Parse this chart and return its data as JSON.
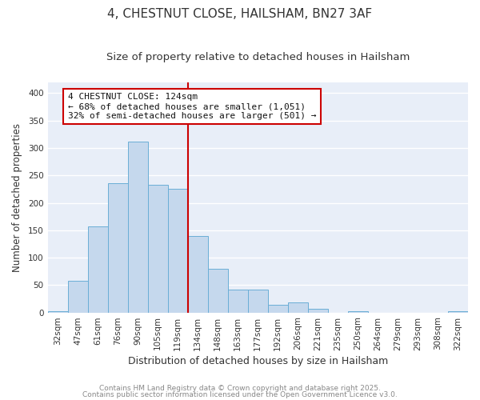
{
  "title": "4, CHESTNUT CLOSE, HAILSHAM, BN27 3AF",
  "subtitle": "Size of property relative to detached houses in Hailsham",
  "xlabel": "Distribution of detached houses by size in Hailsham",
  "ylabel": "Number of detached properties",
  "categories": [
    "32sqm",
    "47sqm",
    "61sqm",
    "76sqm",
    "90sqm",
    "105sqm",
    "119sqm",
    "134sqm",
    "148sqm",
    "163sqm",
    "177sqm",
    "192sqm",
    "206sqm",
    "221sqm",
    "235sqm",
    "250sqm",
    "264sqm",
    "279sqm",
    "293sqm",
    "308sqm",
    "322sqm"
  ],
  "values": [
    3,
    58,
    157,
    236,
    311,
    233,
    225,
    140,
    79,
    42,
    42,
    14,
    19,
    7,
    0,
    2,
    0,
    0,
    0,
    0,
    3
  ],
  "bar_color": "#c5d8ed",
  "bar_edge_color": "#6aaed6",
  "vline_x": 7,
  "vline_color": "#cc0000",
  "annotation_box_text": "4 CHESTNUT CLOSE: 124sqm\n← 68% of detached houses are smaller (1,051)\n32% of semi-detached houses are larger (501) →",
  "box_edge_color": "#cc0000",
  "ylim": [
    0,
    420
  ],
  "yticks": [
    0,
    50,
    100,
    150,
    200,
    250,
    300,
    350,
    400
  ],
  "fig_background_color": "#ffffff",
  "plot_background_color": "#e8eef8",
  "grid_color": "#ffffff",
  "footer_line1": "Contains HM Land Registry data © Crown copyright and database right 2025.",
  "footer_line2": "Contains public sector information licensed under the Open Government Licence v3.0.",
  "title_fontsize": 11,
  "subtitle_fontsize": 9.5,
  "xlabel_fontsize": 9,
  "ylabel_fontsize": 8.5,
  "tick_fontsize": 7.5,
  "annotation_fontsize": 8,
  "footer_fontsize": 6.5
}
